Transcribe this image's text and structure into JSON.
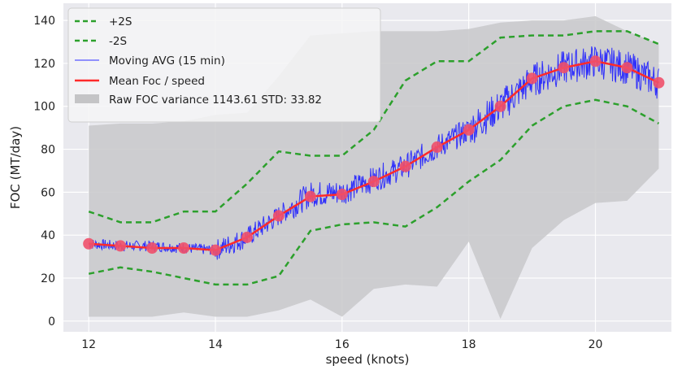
{
  "chart_data": {
    "type": "line",
    "xlabel": "speed (knots)",
    "ylabel": "FOC (MT/day)",
    "xlim": [
      11.6,
      21.2
    ],
    "ylim": [
      -5,
      148
    ],
    "xticks": [
      12,
      14,
      16,
      18,
      20
    ],
    "yticks": [
      0,
      20,
      40,
      60,
      80,
      100,
      120,
      140
    ],
    "grid": true,
    "legend_position": "top-left",
    "colors": {
      "plus2s": "#2ca02c",
      "minus2s": "#2ca02c",
      "moving_avg": "#1f1fff",
      "mean": "#ff2a2a",
      "mean_marker": "#f0506a",
      "variance": "#c8c8ca",
      "plot_bg": "#e9e9ee",
      "grid": "#ffffff"
    },
    "series": [
      {
        "name": "+2S",
        "style": "dashed",
        "x": [
          12,
          12.5,
          13,
          13.5,
          14,
          14.5,
          15,
          15.5,
          16,
          16.5,
          17,
          17.5,
          18,
          18.5,
          19,
          19.5,
          20,
          20.5,
          21
        ],
        "y": [
          51,
          46,
          46,
          51,
          51,
          64,
          79,
          77,
          77,
          89,
          112,
          121,
          121,
          132,
          133,
          133,
          135,
          135,
          129
        ]
      },
      {
        "name": "-2S",
        "style": "dashed",
        "x": [
          12,
          12.5,
          13,
          13.5,
          14,
          14.5,
          15,
          15.5,
          16,
          16.5,
          17,
          17.5,
          18,
          18.5,
          19,
          19.5,
          20,
          20.5,
          21
        ],
        "y": [
          22,
          25,
          23,
          20,
          17,
          17,
          21,
          42,
          45,
          46,
          44,
          53,
          65,
          75,
          91,
          100,
          103,
          100,
          92
        ]
      },
      {
        "name": "Moving AVG (15 min)",
        "style": "noisy",
        "x": [
          12,
          12.5,
          13,
          13.5,
          14,
          14.5,
          15,
          15.5,
          16,
          16.5,
          17,
          17.5,
          18,
          18.5,
          19,
          19.5,
          20,
          20.5,
          21
        ],
        "y": [
          36,
          35,
          35,
          34,
          33,
          39,
          49,
          59,
          60,
          66,
          72,
          81,
          89,
          100,
          112,
          118,
          121,
          118,
          111
        ]
      },
      {
        "name": "Mean Foc / speed",
        "style": "solid",
        "x": [
          12,
          12.5,
          13,
          13.5,
          14,
          14.5,
          15,
          15.5,
          16,
          16.5,
          17,
          17.5,
          18,
          18.5,
          19,
          19.5,
          20,
          20.5,
          21
        ],
        "y": [
          36,
          35,
          34,
          34,
          33,
          39,
          49,
          58,
          59,
          65,
          72,
          81,
          89,
          100,
          113,
          118,
          121,
          118,
          111
        ]
      },
      {
        "name": "Raw FOC variance  1143.61 STD: 33.82",
        "style": "band",
        "x": [
          12,
          12.5,
          13,
          13.5,
          14,
          14.5,
          15,
          15.5,
          16,
          16.5,
          17,
          17.5,
          18,
          18.5,
          19,
          19.5,
          20,
          20.5,
          21
        ],
        "upper": [
          91,
          92,
          92,
          93,
          96,
          97,
          114,
          133,
          134,
          135,
          135,
          135,
          136,
          139,
          140,
          140,
          142,
          135,
          129
        ],
        "lower": [
          2,
          2,
          2,
          4,
          2,
          2,
          5,
          10,
          2,
          15,
          17,
          16,
          37,
          1,
          34,
          47,
          55,
          56,
          71
        ]
      }
    ]
  }
}
